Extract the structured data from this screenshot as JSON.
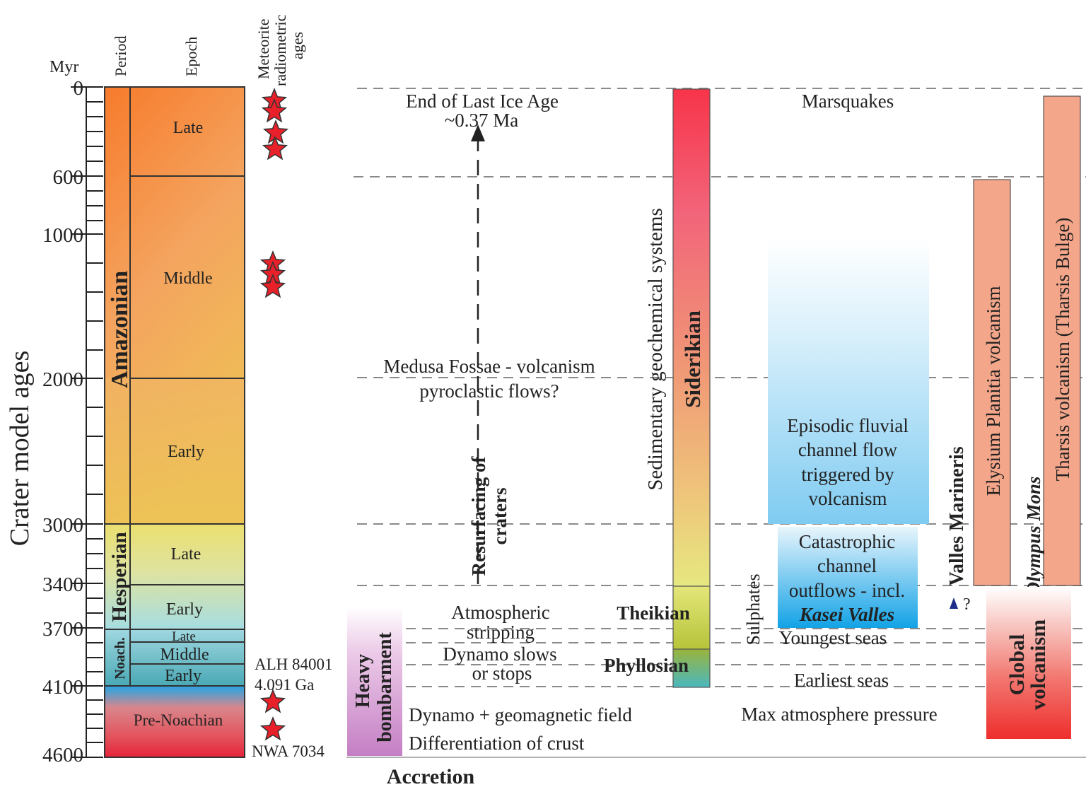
{
  "axis": {
    "title": "Crater model ages",
    "unit": "Myr",
    "ticks": [
      "0",
      "600",
      "1000",
      "2000",
      "3000",
      "3400",
      "3700",
      "4100",
      "4600"
    ]
  },
  "headers": {
    "period": "Period",
    "epoch": "Epoch",
    "meteorite_line1": "Meteorite",
    "meteorite_line2": "radiometric",
    "meteorite_line3": "ages"
  },
  "periods": {
    "amazonian": "Amazonian",
    "hesperian": "Hesperian",
    "noachian": "Noach.",
    "pre_noachian": "Pre-Noachian"
  },
  "epochs": {
    "amazonian_late": "Late",
    "amazonian_middle": "Middle",
    "amazonian_early": "Early",
    "hesperian_late": "Late",
    "hesperian_early": "Early",
    "noachian_late": "Late",
    "noachian_middle": "Middle",
    "noachian_early": "Early"
  },
  "meteorites": {
    "alh_name": "ALH 84001",
    "alh_age": "4.091 Ga",
    "nwa_name": "NWA 7034"
  },
  "events": {
    "last_ice_age_1": "End of Last Ice Age",
    "last_ice_age_2": "~0.37 Ma",
    "medusa_1": "Medusa Fossae - volcanism",
    "medusa_2": "pyroclastic flows?",
    "resurfacing_1": "Resurfacing of",
    "resurfacing_2": "craters",
    "heavy_1": "Heavy",
    "heavy_2": "bombarment",
    "atmo_1": "Atmospheric",
    "atmo_2": "stripping",
    "dynamo_slows_1": "Dynamo slows",
    "dynamo_slows_2": "or stops",
    "dynamo_field": "Dynamo + geomagnetic field",
    "differentiation": "Differentiation of crust",
    "accretion": "Accretion",
    "geochem_label": "Sedimentary geochemical systems",
    "siderikian": "Siderikian",
    "theikian": "Theikian",
    "phyllosian": "Phyllosian",
    "sulphates": "Sulphates",
    "marsquakes": "Marsquakes",
    "fluvial_1": "Episodic fluvial",
    "fluvial_2": "channel flow",
    "fluvial_3": "triggered by",
    "fluvial_4": "volcanism",
    "cata_1": "Catastrophic",
    "cata_2": "channel",
    "cata_3": "outflows - incl.",
    "cata_4": "Kasei Valles",
    "youngest_seas": "Youngest seas",
    "earliest_seas": "Earliest seas",
    "max_atmo": "Max atmosphere pressure",
    "valles": "Valles Marineris",
    "question": "?",
    "elysium": "Elysium Planitia volcanism",
    "olympus": "Olympus Mons",
    "tharsis": "Tharsis volcanism (Tharsis Bulge)",
    "global_1": "Global",
    "global_2": "volcanism"
  },
  "colors": {
    "star": "#e8202a",
    "dashed": "#8a8a8a",
    "amazonian_top": "#f77f2e",
    "hesperian": "#e6e47a",
    "noachian": "#5fb7c0",
    "pre_noachian_bottom": "#e12a3c",
    "volcanism_salmon": "#f4a68a",
    "fluvial_blue": "#7dc8f0",
    "kasei_blue": "#1aa6e6",
    "heavy_purple": "#c87fc6"
  }
}
